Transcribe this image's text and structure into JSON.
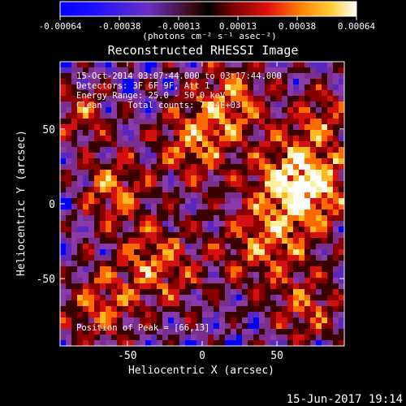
{
  "chart_data": {
    "type": "heatmap",
    "title": "Reconstructed RHESSI Image",
    "xlabel": "Heliocentric X (arcsec)",
    "ylabel": "Heliocentric Y (arcsec)",
    "xlim": [
      -95,
      95
    ],
    "ylim": [
      -95,
      95
    ],
    "xticks": [
      -50,
      0,
      50
    ],
    "yticks": [
      -50,
      0,
      50
    ],
    "colorbar": {
      "ticks": [
        "-0.00064",
        "-0.00038",
        "-0.00013",
        "0.00013",
        "0.00038",
        "0.00064"
      ],
      "unit": "(photons cm⁻² s⁻¹ asec⁻²)",
      "range": [
        -0.00064,
        0.00064
      ]
    },
    "annotations": [
      "15-Oct-2014 03:07:44.000 to 03:17:44.000",
      "Detectors: 3F 6F 9F, Att 1",
      "Energy Range: 25.0 - 50.0 keV",
      "Clean     Total counts: 7.94E+03"
    ],
    "peak_label": "Position of Peak = [66,13]",
    "peak": [
      66,
      13
    ],
    "grid": false
  },
  "footer_date": "15-Jun-2017 19:14",
  "palette": {
    "negative": [
      "#0000ff",
      "#5a28c0",
      "#8a3aa8",
      "#7a2e8e"
    ],
    "positive": [
      "#3a0000",
      "#8a0000",
      "#d41010",
      "#ff6a00",
      "#ffb820",
      "#fff0a0",
      "#ffffff"
    ]
  }
}
